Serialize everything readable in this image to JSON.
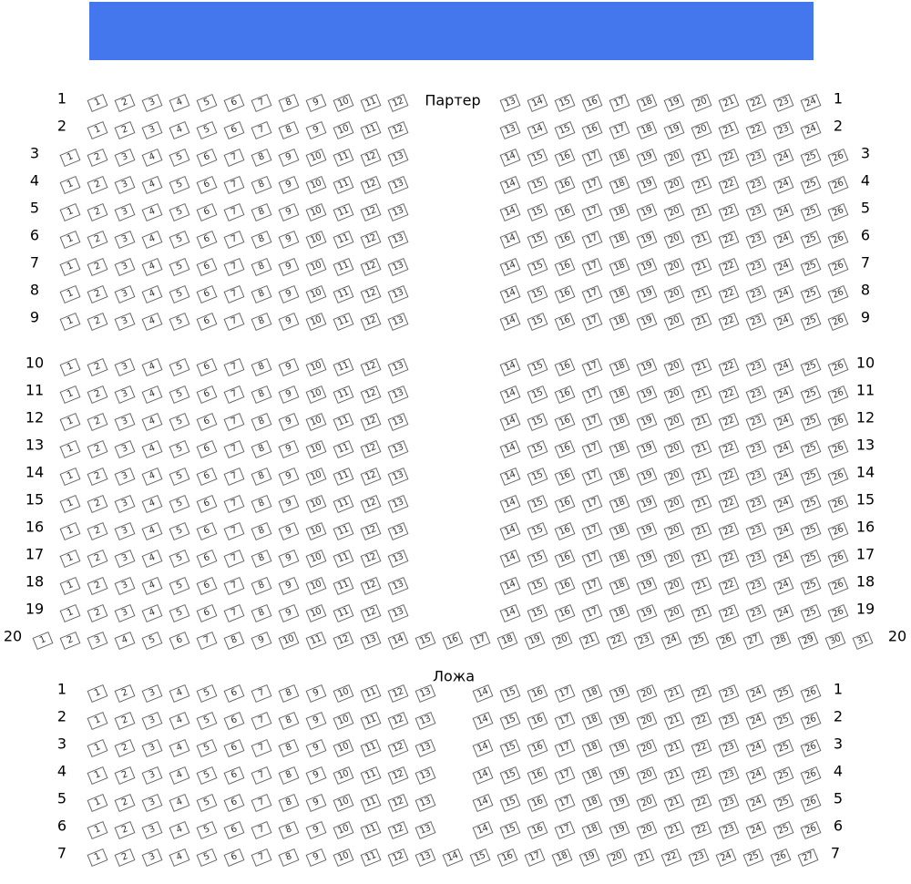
{
  "stage": {
    "color": "#4477ee"
  },
  "sections": [
    {
      "title": "Партер",
      "rows": [
        {
          "label": "1",
          "left": [
            1,
            12
          ],
          "right": [
            13,
            24
          ]
        },
        {
          "label": "2",
          "left": [
            1,
            12
          ],
          "right": [
            13,
            24
          ]
        },
        {
          "label": "3",
          "left": [
            1,
            13
          ],
          "right": [
            14,
            26
          ]
        },
        {
          "label": "4",
          "left": [
            1,
            13
          ],
          "right": [
            14,
            26
          ]
        },
        {
          "label": "5",
          "left": [
            1,
            13
          ],
          "right": [
            14,
            26
          ]
        },
        {
          "label": "6",
          "left": [
            1,
            13
          ],
          "right": [
            14,
            26
          ]
        },
        {
          "label": "7",
          "left": [
            1,
            13
          ],
          "right": [
            14,
            26
          ]
        },
        {
          "label": "8",
          "left": [
            1,
            13
          ],
          "right": [
            14,
            26
          ]
        },
        {
          "label": "9",
          "left": [
            1,
            13
          ],
          "right": [
            14,
            26
          ]
        },
        {
          "label": "10",
          "left": [
            1,
            13
          ],
          "right": [
            14,
            26
          ]
        },
        {
          "label": "11",
          "left": [
            1,
            13
          ],
          "right": [
            14,
            26
          ]
        },
        {
          "label": "12",
          "left": [
            1,
            13
          ],
          "right": [
            14,
            26
          ]
        },
        {
          "label": "13",
          "left": [
            1,
            13
          ],
          "right": [
            14,
            26
          ]
        },
        {
          "label": "14",
          "left": [
            1,
            13
          ],
          "right": [
            14,
            26
          ]
        },
        {
          "label": "15",
          "left": [
            1,
            13
          ],
          "right": [
            14,
            26
          ]
        },
        {
          "label": "16",
          "left": [
            1,
            13
          ],
          "right": [
            14,
            26
          ]
        },
        {
          "label": "17",
          "left": [
            1,
            13
          ],
          "right": [
            14,
            26
          ]
        },
        {
          "label": "18",
          "left": [
            1,
            13
          ],
          "right": [
            14,
            26
          ]
        },
        {
          "label": "19",
          "left": [
            1,
            13
          ],
          "right": [
            14,
            26
          ]
        },
        {
          "label": "20",
          "all": [
            1,
            31
          ]
        }
      ]
    },
    {
      "title": "Ложа",
      "rows": [
        {
          "label": "1",
          "left": [
            1,
            13
          ],
          "right": [
            14,
            26
          ]
        },
        {
          "label": "2",
          "left": [
            1,
            13
          ],
          "right": [
            14,
            26
          ]
        },
        {
          "label": "3",
          "left": [
            1,
            13
          ],
          "right": [
            14,
            26
          ]
        },
        {
          "label": "4",
          "left": [
            1,
            13
          ],
          "right": [
            14,
            26
          ]
        },
        {
          "label": "5",
          "left": [
            1,
            13
          ],
          "right": [
            14,
            26
          ]
        },
        {
          "label": "6",
          "left": [
            1,
            13
          ],
          "right": [
            14,
            26
          ]
        },
        {
          "label": "7",
          "all": [
            1,
            27
          ]
        }
      ]
    }
  ]
}
